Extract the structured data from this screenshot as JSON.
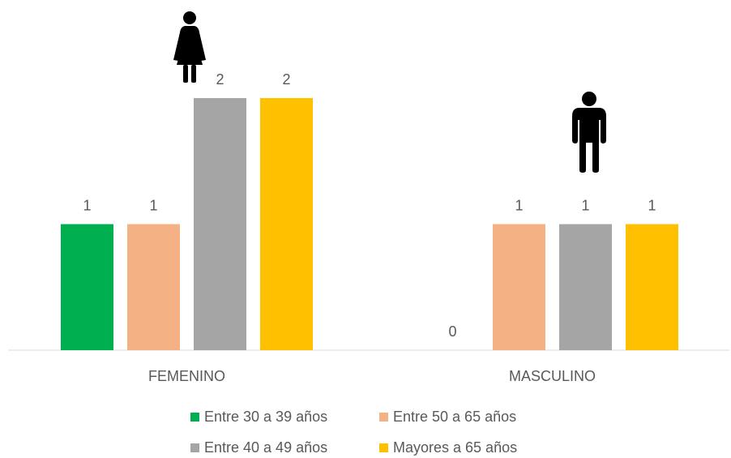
{
  "chart_data": {
    "type": "bar",
    "categories": [
      "FEMENINO",
      "MASCULINO"
    ],
    "series": [
      {
        "name": "Entre 30 a 39 años",
        "color": "#00b050",
        "values": [
          1,
          0
        ]
      },
      {
        "name": "Entre 50 a 65 años",
        "color": "#f4b183",
        "values": [
          1,
          1
        ]
      },
      {
        "name": "Entre 40 a 49 años",
        "color": "#a5a5a5",
        "values": [
          2,
          1
        ]
      },
      {
        "name": "Mayores a 65 años",
        "color": "#ffc000",
        "values": [
          2,
          1
        ]
      }
    ],
    "ylim": [
      0,
      2.5
    ],
    "legend": "bottom"
  }
}
